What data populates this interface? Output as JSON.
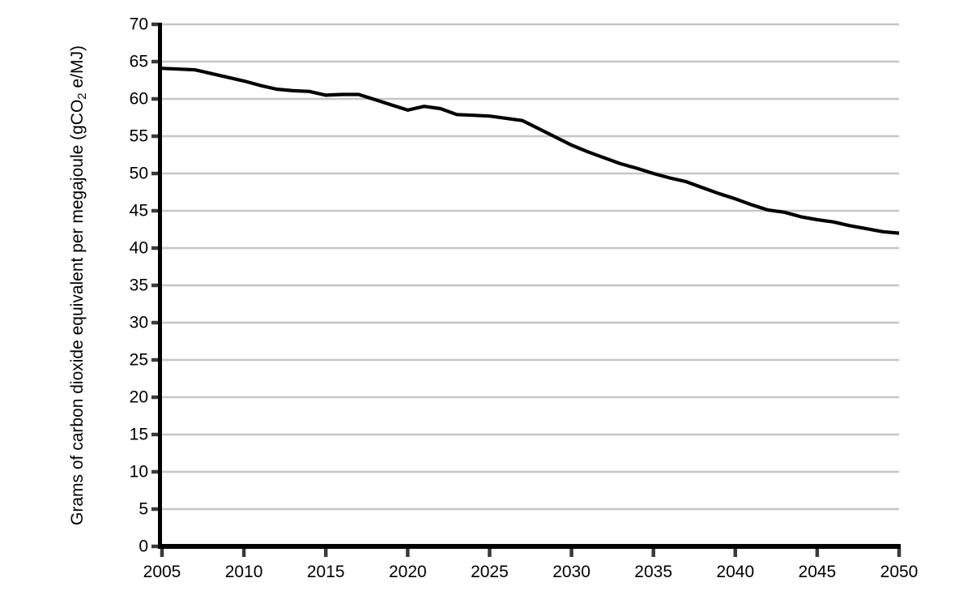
{
  "page": {
    "background": "#ffffff"
  },
  "chart_data": {
    "type": "line",
    "title": "",
    "xlabel": "",
    "ylabel": "Grams of carbon dioxide equivalent per megajoule (gCO2 e/MJ)",
    "ylabel_parts": {
      "pre": "Grams of carbon dioxide equivalent per megajoule (gCO",
      "sub": "2",
      "post": " e/MJ)"
    },
    "x": [
      2005,
      2006,
      2007,
      2008,
      2009,
      2010,
      2011,
      2012,
      2013,
      2014,
      2015,
      2016,
      2017,
      2018,
      2019,
      2020,
      2021,
      2022,
      2023,
      2024,
      2025,
      2026,
      2027,
      2028,
      2029,
      2030,
      2031,
      2032,
      2033,
      2034,
      2035,
      2036,
      2037,
      2038,
      2039,
      2040,
      2041,
      2042,
      2043,
      2044,
      2045,
      2046,
      2047,
      2048,
      2049,
      2050
    ],
    "values": [
      64.1,
      64.0,
      63.9,
      63.4,
      62.9,
      62.4,
      61.8,
      61.3,
      61.1,
      61.0,
      60.5,
      60.6,
      60.6,
      59.9,
      59.2,
      58.5,
      59.0,
      58.7,
      57.9,
      57.8,
      57.7,
      57.4,
      57.1,
      56.0,
      54.9,
      53.8,
      52.9,
      52.1,
      51.3,
      50.7,
      50.0,
      49.4,
      48.9,
      48.1,
      47.3,
      46.6,
      45.8,
      45.1,
      44.8,
      44.2,
      43.8,
      43.5,
      43.0,
      42.6,
      42.2,
      42.0
    ],
    "xlim": [
      2005,
      2050
    ],
    "ylim": [
      0,
      70
    ],
    "yticks": [
      0,
      5,
      10,
      15,
      20,
      25,
      30,
      35,
      40,
      45,
      50,
      55,
      60,
      65,
      70
    ],
    "xticks": [
      2005,
      2010,
      2015,
      2020,
      2025,
      2030,
      2035,
      2040,
      2045,
      2050
    ],
    "grid": "horizontal",
    "legend": "none",
    "colors": {
      "line": "#000000",
      "axis": "#000000",
      "grid": "#c6c6c6",
      "tick": "#3a3a3a",
      "text": "#000000"
    }
  }
}
